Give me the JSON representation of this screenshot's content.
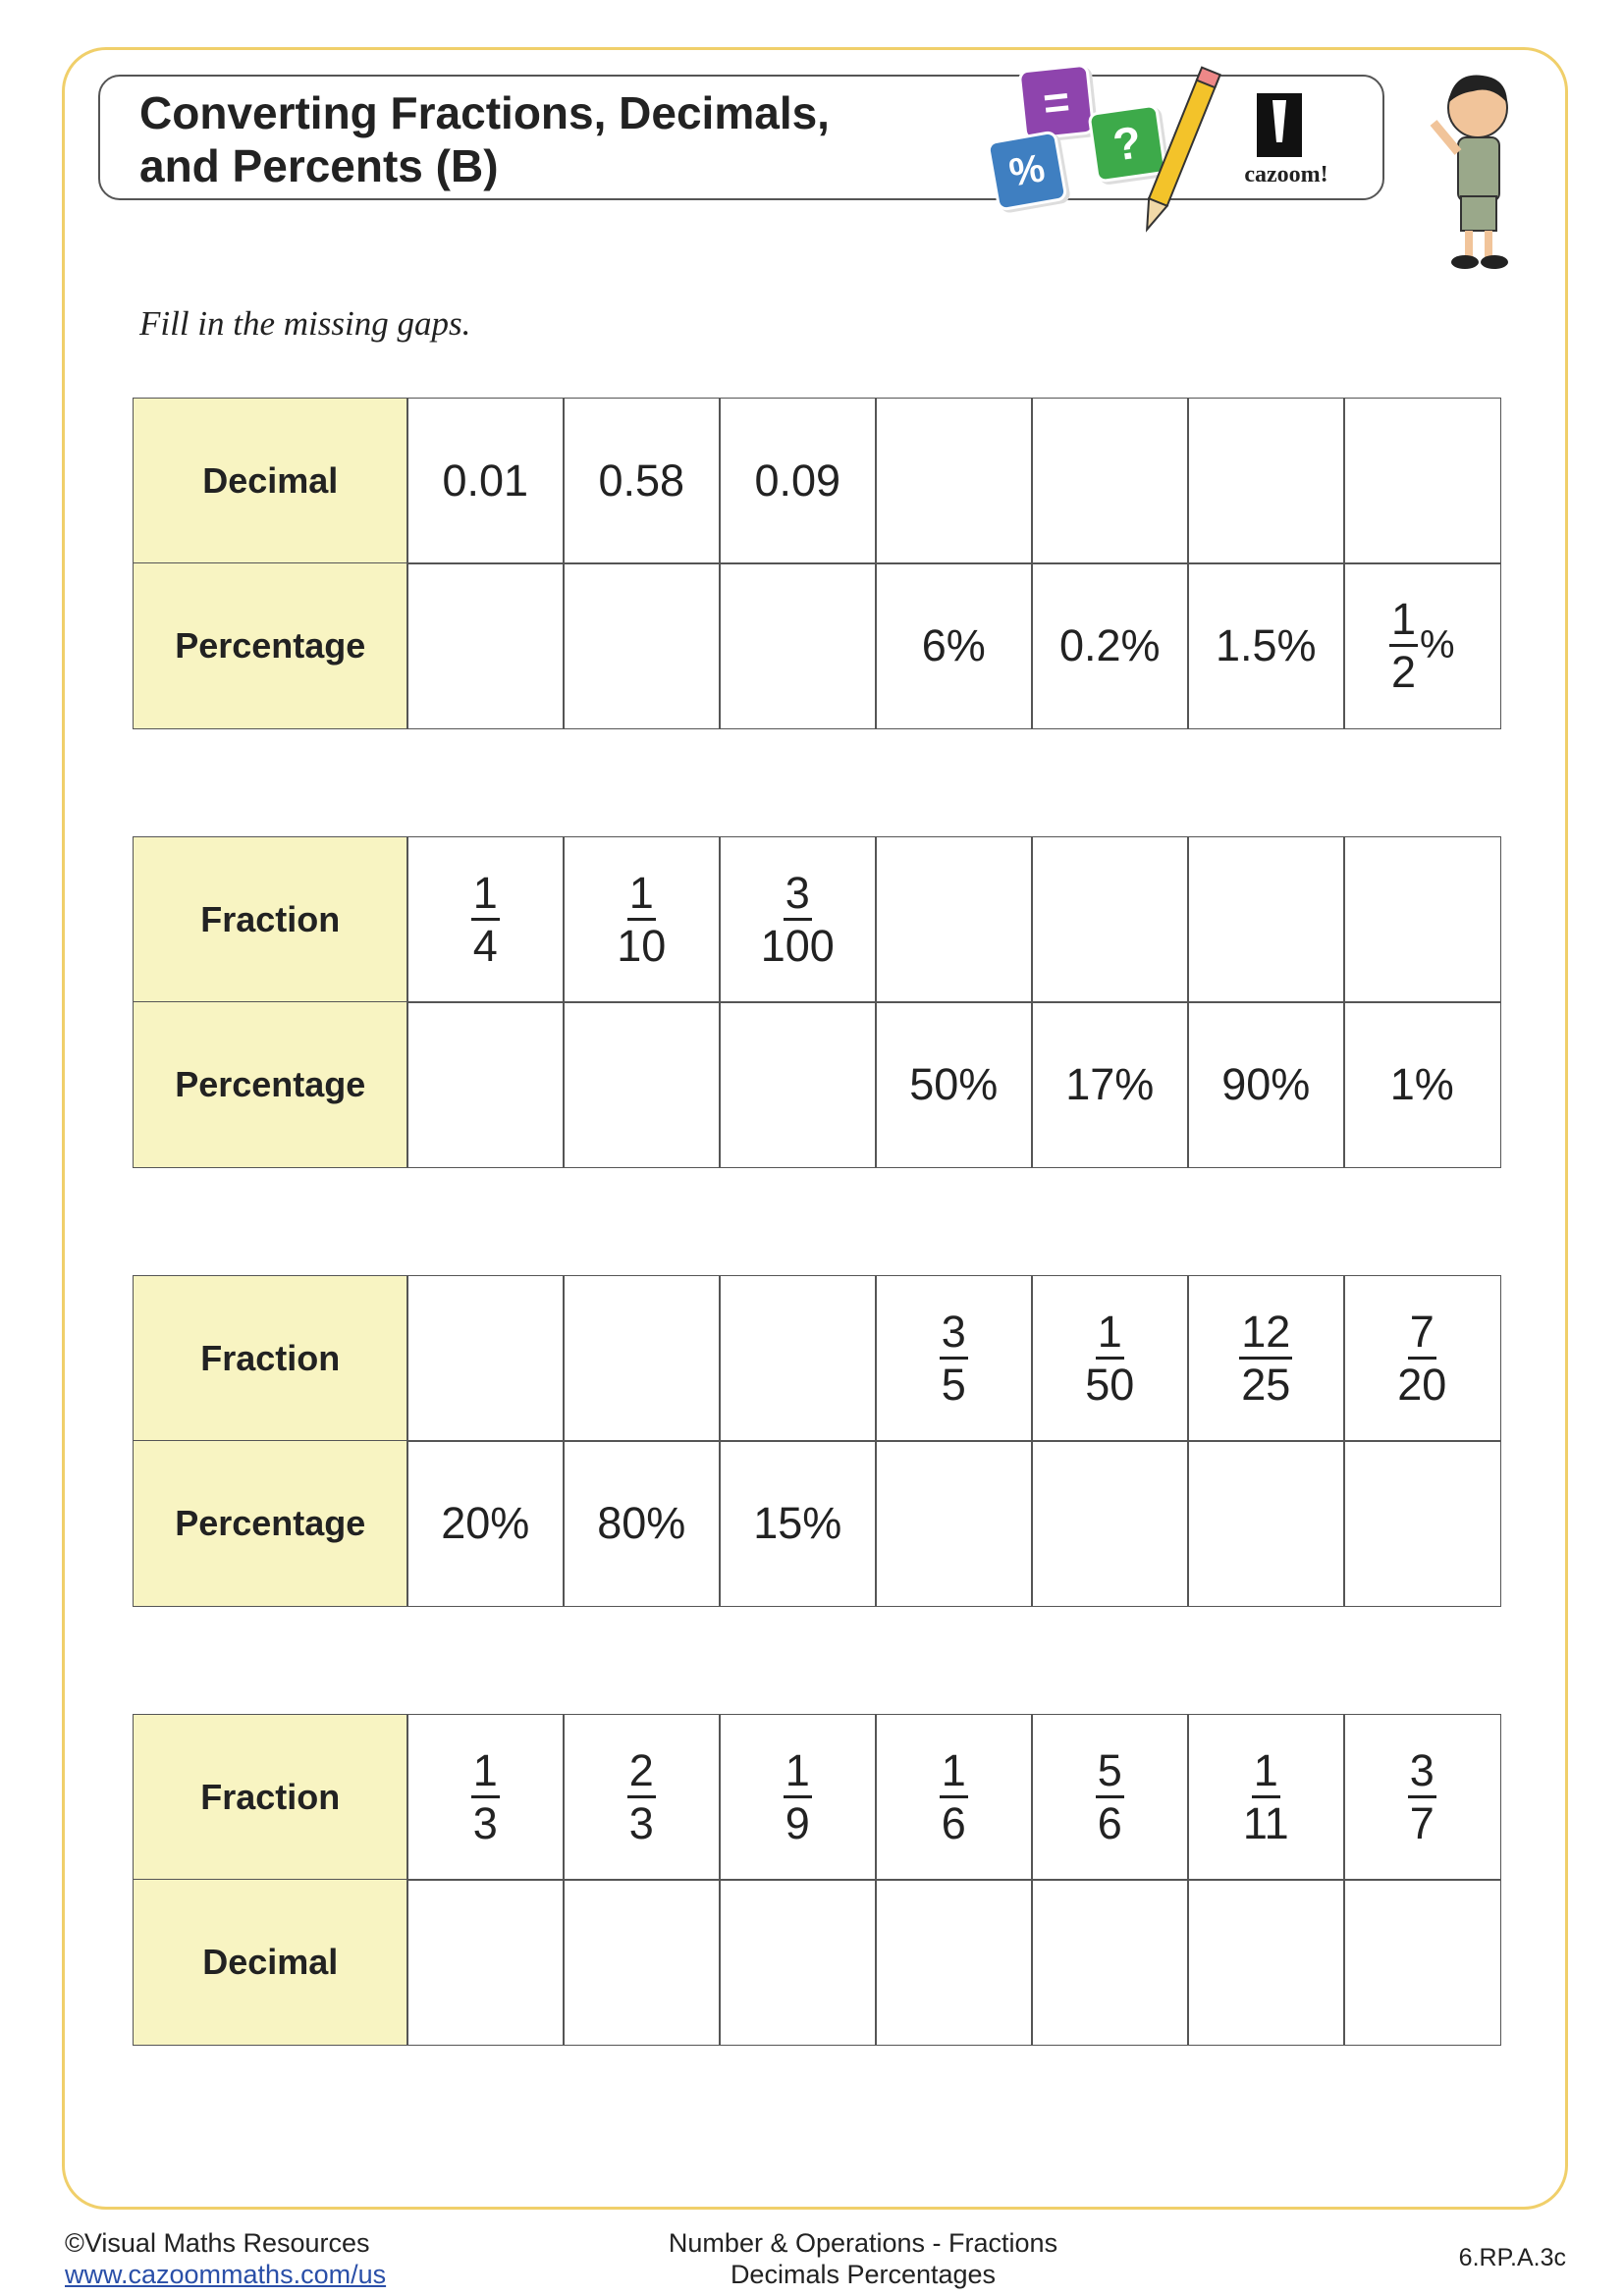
{
  "header": {
    "title": [
      "Converting Fractions, Decimals,",
      "and Percents (B)"
    ],
    "icons": [
      "=",
      "?",
      "%"
    ],
    "logo": "cazoom!"
  },
  "instruction": "Fill in the missing gaps.",
  "tables": [
    {
      "rows": [
        {
          "label": "Decimal",
          "cells": [
            "0.01",
            "0.58",
            "0.09",
            null,
            null,
            null,
            null
          ]
        },
        {
          "label": "Percentage",
          "cells": [
            null,
            null,
            null,
            "6%",
            "0.2%",
            "1.5%",
            {
              "numerator": "1",
              "denominator": "2",
              "suffix": "%"
            }
          ]
        }
      ]
    },
    {
      "rows": [
        {
          "label": "Fraction",
          "cells": [
            {
              "numerator": "1",
              "denominator": "4"
            },
            {
              "numerator": "1",
              "denominator": "10"
            },
            {
              "numerator": "3",
              "denominator": "100"
            },
            null,
            null,
            null,
            null
          ]
        },
        {
          "label": "Percentage",
          "cells": [
            null,
            null,
            null,
            "50%",
            "17%",
            "90%",
            "1%"
          ]
        }
      ]
    },
    {
      "rows": [
        {
          "label": "Fraction",
          "cells": [
            null,
            null,
            null,
            {
              "numerator": "3",
              "denominator": "5"
            },
            {
              "numerator": "1",
              "denominator": "50"
            },
            {
              "numerator": "12",
              "denominator": "25"
            },
            {
              "numerator": "7",
              "denominator": "20"
            }
          ]
        },
        {
          "label": "Percentage",
          "cells": [
            "20%",
            "80%",
            "15%",
            null,
            null,
            null,
            null
          ]
        }
      ]
    },
    {
      "rows": [
        {
          "label": "Fraction",
          "cells": [
            {
              "numerator": "1",
              "denominator": "3"
            },
            {
              "numerator": "2",
              "denominator": "3"
            },
            {
              "numerator": "1",
              "denominator": "9"
            },
            {
              "numerator": "1",
              "denominator": "6"
            },
            {
              "numerator": "5",
              "denominator": "6"
            },
            {
              "numerator": "1",
              "denominator": "11"
            },
            {
              "numerator": "3",
              "denominator": "7"
            }
          ]
        },
        {
          "label": "Decimal",
          "cells": [
            null,
            null,
            null,
            null,
            null,
            null,
            null
          ]
        }
      ]
    }
  ],
  "footer": {
    "copyright": "©Visual Maths Resources",
    "link": "www.cazoommaths.com/us",
    "topic": [
      "Number & Operations - Fractions",
      "Decimals Percentages"
    ],
    "code": "6.RP.A.3c"
  }
}
